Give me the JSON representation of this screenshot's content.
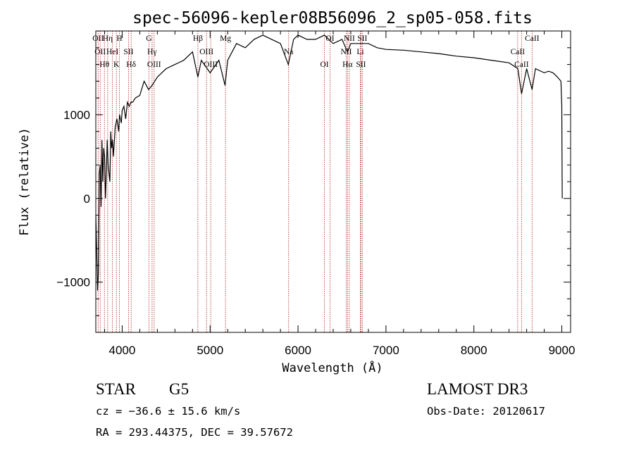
{
  "chart_data": {
    "type": "line",
    "title": "spec-56096-kepler08B56096_2_sp05-058.fits",
    "xlabel": "Wavelength (Å)",
    "ylabel": "Flux (relative)",
    "xlim": [
      3700,
      9100
    ],
    "ylim": [
      -1600,
      2000
    ],
    "xticks": [
      4000,
      5000,
      6000,
      7000,
      8000,
      9000
    ],
    "yticks": [
      -1000,
      0,
      1000
    ],
    "ytick_labels": [
      "−1000",
      "0",
      "1000"
    ],
    "grid": false,
    "series": [
      {
        "x": [
          3700,
          3710,
          3720,
          3730,
          3740,
          3750,
          3760,
          3770,
          3780,
          3790,
          3800,
          3810,
          3820,
          3830,
          3840,
          3850,
          3860,
          3870,
          3880,
          3890,
          3900,
          3920,
          3940,
          3960,
          3970,
          3990,
          4000,
          4020,
          4040,
          4060,
          4080,
          4100,
          4120,
          4150,
          4200,
          4250,
          4300,
          4340,
          4400,
          4450,
          4500,
          4600,
          4700,
          4800,
          4861,
          4900,
          5000,
          5100,
          5170,
          5200,
          5300,
          5400,
          5500,
          5600,
          5700,
          5800,
          5890,
          5950,
          6000,
          6100,
          6200,
          6300,
          6400,
          6500,
          6563,
          6600,
          6700,
          6800,
          6900,
          7000,
          7200,
          7400,
          7600,
          7800,
          8000,
          8200,
          8400,
          8500,
          8542,
          8600,
          8662,
          8700,
          8800,
          8850,
          8900,
          8950,
          8990,
          9000,
          9005
        ],
        "y": [
          -200,
          -600,
          -1100,
          -900,
          300,
          400,
          -100,
          700,
          200,
          600,
          500,
          0,
          300,
          700,
          400,
          300,
          200,
          800,
          600,
          700,
          500,
          850,
          950,
          800,
          1000,
          900,
          1050,
          1100,
          950,
          1150,
          1100,
          1150,
          1150,
          1200,
          1230,
          1400,
          1300,
          1350,
          1450,
          1500,
          1550,
          1600,
          1650,
          1750,
          1450,
          1650,
          1500,
          1650,
          1350,
          1650,
          1850,
          1800,
          1900,
          1950,
          1900,
          1850,
          1600,
          1900,
          1950,
          1900,
          1900,
          1950,
          1850,
          1900,
          1750,
          1850,
          1850,
          1850,
          1800,
          1780,
          1770,
          1750,
          1730,
          1700,
          1680,
          1650,
          1620,
          1550,
          1250,
          1550,
          1300,
          1550,
          1500,
          1520,
          1500,
          1450,
          1400,
          1100,
          0
        ]
      }
    ],
    "spectral_lines": [
      {
        "wl": 3726,
        "label": "OII"
      },
      {
        "wl": 3750,
        "label": "OII"
      },
      {
        "wl": 3798,
        "label": "Hθ"
      },
      {
        "wl": 3835,
        "label": "Hη"
      },
      {
        "wl": 3889,
        "label": "HeI"
      },
      {
        "wl": 3934,
        "label": "K"
      },
      {
        "wl": 3969,
        "label": "H"
      },
      {
        "wl": 4072,
        "label": "SII"
      },
      {
        "wl": 4102,
        "label": "Hδ"
      },
      {
        "wl": 4304,
        "label": "G"
      },
      {
        "wl": 4340,
        "label": "Hγ"
      },
      {
        "wl": 4363,
        "label": "OIII"
      },
      {
        "wl": 4861,
        "label": "Hβ"
      },
      {
        "wl": 4959,
        "label": "OIII"
      },
      {
        "wl": 5007,
        "label": "OIII"
      },
      {
        "wl": 5175,
        "label": "Mg"
      },
      {
        "wl": 5893,
        "label": "Na"
      },
      {
        "wl": 6300,
        "label": "OI"
      },
      {
        "wl": 6364,
        "label": "OI"
      },
      {
        "wl": 6548,
        "label": "NII"
      },
      {
        "wl": 6563,
        "label": "Hα"
      },
      {
        "wl": 6583,
        "label": "NII"
      },
      {
        "wl": 6708,
        "label": "Li"
      },
      {
        "wl": 6716,
        "label": "SII"
      },
      {
        "wl": 6731,
        "label": "SII"
      },
      {
        "wl": 8498,
        "label": "CaII"
      },
      {
        "wl": 8542,
        "label": "CaII"
      },
      {
        "wl": 8662,
        "label": "CaII"
      }
    ]
  },
  "info": {
    "class": "STAR",
    "subclass": "G5",
    "survey": "LAMOST DR3",
    "cz": "cz = −36.6 ± 15.6 km/s",
    "obsdate": "Obs-Date: 20120617",
    "radec": "RA = 293.44375, DEC =  39.57672"
  },
  "colors": {
    "spectrum": "#000000",
    "lines": "#b22222"
  }
}
